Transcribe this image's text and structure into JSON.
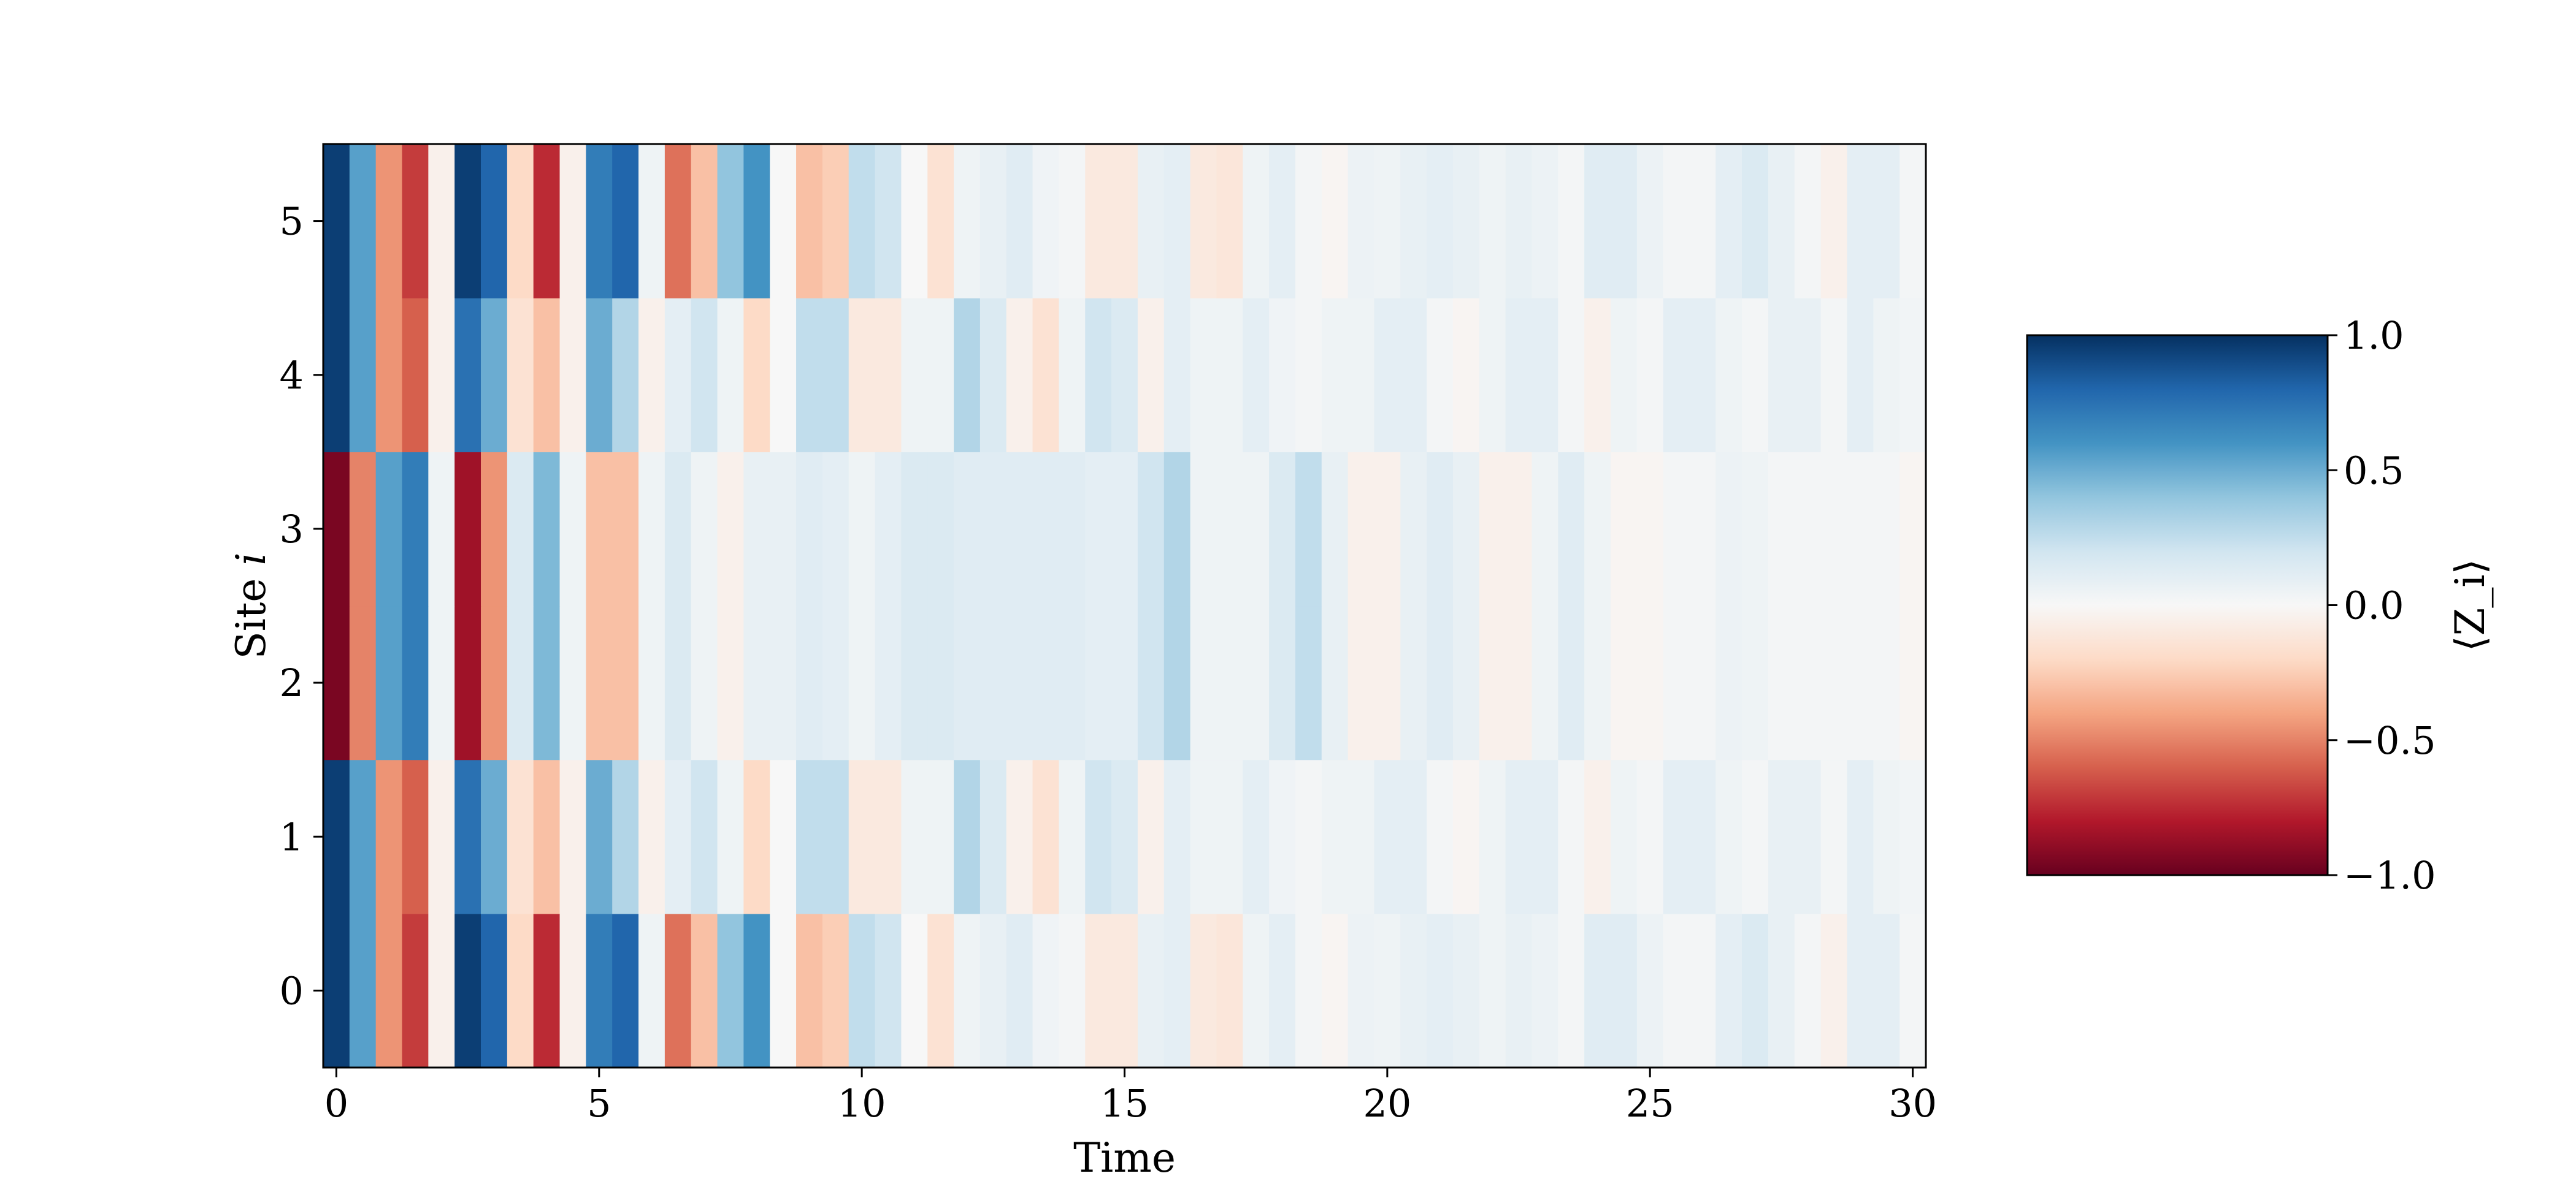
{
  "chart_data": {
    "type": "heatmap",
    "title": "",
    "xlabel": "Time",
    "ylabel_prefix": "Site ",
    "ylabel_var": "i",
    "x_ticks": [
      0,
      5,
      10,
      15,
      20,
      25,
      30
    ],
    "y_ticks": [
      0,
      1,
      2,
      3,
      4,
      5
    ],
    "x_range": [
      -0.25,
      30.25
    ],
    "y_range": [
      -0.5,
      5.5
    ],
    "time_step": 0.5,
    "colormap": "RdBu",
    "colorbar": {
      "label": "⟨Z_i⟩",
      "ticks": [
        1.0,
        0.5,
        0.0,
        -0.5,
        -1.0
      ],
      "tick_labels": [
        "1.0",
        "0.5",
        "0.0",
        "−0.5",
        "−1.0"
      ],
      "range": [
        -1.0,
        1.0
      ]
    },
    "rows": [
      {
        "site": 0,
        "values": [
          0.95,
          0.55,
          -0.45,
          -0.7,
          -0.05,
          0.95,
          0.8,
          -0.2,
          -0.75,
          -0.05,
          0.7,
          0.8,
          0.05,
          -0.55,
          -0.3,
          0.4,
          0.6,
          0.0,
          -0.3,
          -0.25,
          0.25,
          0.2,
          0.0,
          -0.15,
          0.05,
          0.08,
          0.12,
          0.04,
          0.02,
          -0.1,
          -0.1,
          0.08,
          0.1,
          -0.1,
          -0.12,
          0.05,
          0.1,
          0.02,
          -0.02,
          0.06,
          0.05,
          0.08,
          0.1,
          0.08,
          0.05,
          0.08,
          0.06,
          0.02,
          0.12,
          0.12,
          0.06,
          0.02,
          0.02,
          0.1,
          0.15,
          0.08,
          0.02,
          -0.05,
          0.1,
          0.1,
          0.02
        ]
      },
      {
        "site": 1,
        "values": [
          0.95,
          0.55,
          -0.45,
          -0.6,
          -0.05,
          0.75,
          0.5,
          -0.15,
          -0.3,
          -0.05,
          0.5,
          0.3,
          -0.05,
          0.1,
          0.2,
          0.05,
          -0.2,
          0.0,
          0.25,
          0.25,
          -0.1,
          -0.1,
          0.05,
          0.05,
          0.3,
          0.15,
          -0.05,
          -0.15,
          0.05,
          0.2,
          0.15,
          -0.05,
          0.1,
          0.05,
          0.05,
          0.1,
          0.04,
          0.02,
          0.05,
          0.05,
          0.1,
          0.1,
          0.02,
          -0.02,
          0.05,
          0.1,
          0.1,
          0.02,
          -0.05,
          0.05,
          0.02,
          0.1,
          0.1,
          0.05,
          0.02,
          0.08,
          0.08,
          0.02,
          0.1,
          0.05,
          0.03
        ]
      },
      {
        "site": 2,
        "values": [
          -0.95,
          -0.5,
          0.55,
          0.7,
          0.05,
          -0.85,
          -0.45,
          0.15,
          0.45,
          0.05,
          -0.3,
          -0.3,
          0.05,
          0.15,
          0.05,
          -0.05,
          0.08,
          0.08,
          0.12,
          0.1,
          0.05,
          0.1,
          0.15,
          0.15,
          0.12,
          0.12,
          0.12,
          0.12,
          0.12,
          0.1,
          0.1,
          0.2,
          0.3,
          0.05,
          0.05,
          0.05,
          0.15,
          0.25,
          0.08,
          -0.05,
          -0.05,
          0.08,
          0.12,
          0.08,
          -0.05,
          -0.05,
          0.05,
          0.12,
          0.05,
          -0.02,
          -0.02,
          0.02,
          0.02,
          0.06,
          0.05,
          0.02,
          0.02,
          0.02,
          0.02,
          0.02,
          -0.02
        ]
      },
      {
        "site": 3,
        "values": [
          -0.95,
          -0.5,
          0.55,
          0.7,
          0.05,
          -0.85,
          -0.45,
          0.15,
          0.45,
          0.05,
          -0.3,
          -0.3,
          0.05,
          0.15,
          0.05,
          -0.05,
          0.08,
          0.08,
          0.12,
          0.1,
          0.05,
          0.1,
          0.15,
          0.15,
          0.12,
          0.12,
          0.12,
          0.12,
          0.12,
          0.1,
          0.1,
          0.2,
          0.3,
          0.05,
          0.05,
          0.05,
          0.15,
          0.25,
          0.08,
          -0.05,
          -0.05,
          0.08,
          0.12,
          0.08,
          -0.05,
          -0.05,
          0.05,
          0.12,
          0.05,
          -0.02,
          -0.02,
          0.02,
          0.02,
          0.06,
          0.05,
          0.02,
          0.02,
          0.02,
          0.02,
          0.02,
          -0.02
        ]
      },
      {
        "site": 4,
        "values": [
          0.95,
          0.55,
          -0.45,
          -0.6,
          -0.05,
          0.75,
          0.5,
          -0.15,
          -0.3,
          -0.05,
          0.5,
          0.3,
          -0.05,
          0.1,
          0.2,
          0.05,
          -0.2,
          0.0,
          0.25,
          0.25,
          -0.1,
          -0.1,
          0.05,
          0.05,
          0.3,
          0.15,
          -0.05,
          -0.15,
          0.05,
          0.2,
          0.15,
          -0.05,
          0.1,
          0.05,
          0.05,
          0.1,
          0.04,
          0.02,
          0.05,
          0.05,
          0.1,
          0.1,
          0.02,
          -0.02,
          0.05,
          0.1,
          0.1,
          0.02,
          -0.05,
          0.05,
          0.02,
          0.1,
          0.1,
          0.05,
          0.02,
          0.08,
          0.08,
          0.02,
          0.1,
          0.05,
          0.03
        ]
      },
      {
        "site": 5,
        "values": [
          0.95,
          0.55,
          -0.45,
          -0.7,
          -0.05,
          0.95,
          0.8,
          -0.2,
          -0.75,
          -0.05,
          0.7,
          0.8,
          0.05,
          -0.55,
          -0.3,
          0.4,
          0.6,
          0.0,
          -0.3,
          -0.25,
          0.25,
          0.2,
          0.0,
          -0.15,
          0.05,
          0.08,
          0.12,
          0.04,
          0.02,
          -0.1,
          -0.1,
          0.08,
          0.1,
          -0.1,
          -0.12,
          0.05,
          0.1,
          0.02,
          -0.02,
          0.06,
          0.05,
          0.08,
          0.1,
          0.08,
          0.05,
          0.08,
          0.06,
          0.02,
          0.12,
          0.12,
          0.06,
          0.02,
          0.02,
          0.1,
          0.15,
          0.08,
          0.02,
          -0.05,
          0.1,
          0.1,
          0.02
        ]
      }
    ]
  }
}
